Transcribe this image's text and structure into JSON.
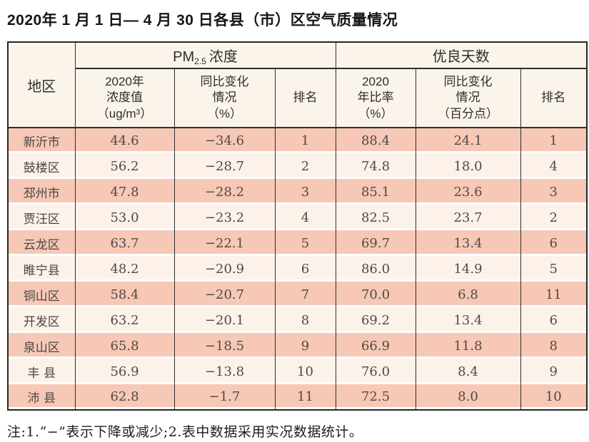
{
  "page": {
    "title": "2020年 1 月 1 日— 4 月 30 日各县（市）区空气质量情况",
    "footnote": "注:1.“−”表示下降或减少;2.表中数据采用实况数据统计。"
  },
  "colors": {
    "row_odd": "#f7c8b6",
    "row_even": "#fdf2ea",
    "header_bg": "#fbf4ea",
    "border": "#2e2e2e"
  },
  "table": {
    "header": {
      "region": "地区",
      "pm25_group": {
        "prefix": "PM",
        "sub": "2.5",
        "suffix": "浓度"
      },
      "good_days_group": "优良天数",
      "sub": {
        "pm_value": "2020年\n浓度值\n（ug/m³）",
        "pm_change": "同比变化\n情况\n（%）",
        "pm_rank": "排名",
        "good_ratio": "2020\n年比率\n（%）",
        "good_change": "同比变化\n情况\n（百分点）",
        "good_rank": "排名"
      }
    },
    "rows": [
      {
        "region": "新沂市",
        "pm_value": "44.6",
        "pm_change": "−34.6",
        "pm_rank": "1",
        "good_ratio": "88.4",
        "good_change": "24.1",
        "good_rank": "1"
      },
      {
        "region": "鼓楼区",
        "pm_value": "56.2",
        "pm_change": "−28.7",
        "pm_rank": "2",
        "good_ratio": "74.8",
        "good_change": "18.0",
        "good_rank": "4"
      },
      {
        "region": "邳州市",
        "pm_value": "47.8",
        "pm_change": "−28.2",
        "pm_rank": "3",
        "good_ratio": "85.1",
        "good_change": "23.6",
        "good_rank": "3"
      },
      {
        "region": "贾汪区",
        "pm_value": "53.0",
        "pm_change": "−23.2",
        "pm_rank": "4",
        "good_ratio": "82.5",
        "good_change": "23.7",
        "good_rank": "2"
      },
      {
        "region": "云龙区",
        "pm_value": "63.7",
        "pm_change": "−22.1",
        "pm_rank": "5",
        "good_ratio": "69.7",
        "good_change": "13.4",
        "good_rank": "6"
      },
      {
        "region": "睢宁县",
        "pm_value": "48.2",
        "pm_change": "−20.9",
        "pm_rank": "6",
        "good_ratio": "86.0",
        "good_change": "14.9",
        "good_rank": "5"
      },
      {
        "region": "铜山区",
        "pm_value": "58.4",
        "pm_change": "−20.7",
        "pm_rank": "7",
        "good_ratio": "70.0",
        "good_change": "6.8",
        "good_rank": "11"
      },
      {
        "region": "开发区",
        "pm_value": "63.2",
        "pm_change": "−20.1",
        "pm_rank": "8",
        "good_ratio": "69.2",
        "good_change": "13.4",
        "good_rank": "6"
      },
      {
        "region": "泉山区",
        "pm_value": "65.8",
        "pm_change": "−18.5",
        "pm_rank": "9",
        "good_ratio": "66.9",
        "good_change": "11.8",
        "good_rank": "8"
      },
      {
        "region": "丰 县",
        "pm_value": "56.9",
        "pm_change": "−13.8",
        "pm_rank": "10",
        "good_ratio": "76.0",
        "good_change": "8.4",
        "good_rank": "9"
      },
      {
        "region": "沛 县",
        "pm_value": "62.8",
        "pm_change": "−1.7",
        "pm_rank": "11",
        "good_ratio": "72.5",
        "good_change": "8.0",
        "good_rank": "10"
      }
    ]
  },
  "chart_data": {
    "type": "table",
    "title": "2020年 1 月 1 日— 4 月 30 日各县（市）区空气质量情况",
    "columns": [
      "地区",
      "PM2.5浓度 2020年浓度值（ug/m³）",
      "PM2.5浓度 同比变化情况（%）",
      "PM2.5浓度 排名",
      "优良天数 2020年比率（%）",
      "优良天数 同比变化情况（百分点）",
      "优良天数 排名"
    ],
    "rows": [
      [
        "新沂市",
        44.6,
        -34.6,
        1,
        88.4,
        24.1,
        1
      ],
      [
        "鼓楼区",
        56.2,
        -28.7,
        2,
        74.8,
        18.0,
        4
      ],
      [
        "邳州市",
        47.8,
        -28.2,
        3,
        85.1,
        23.6,
        3
      ],
      [
        "贾汪区",
        53.0,
        -23.2,
        4,
        82.5,
        23.7,
        2
      ],
      [
        "云龙区",
        63.7,
        -22.1,
        5,
        69.7,
        13.4,
        6
      ],
      [
        "睢宁县",
        48.2,
        -20.9,
        6,
        86.0,
        14.9,
        5
      ],
      [
        "铜山区",
        58.4,
        -20.7,
        7,
        70.0,
        6.8,
        11
      ],
      [
        "开发区",
        63.2,
        -20.1,
        8,
        69.2,
        13.4,
        6
      ],
      [
        "泉山区",
        65.8,
        -18.5,
        9,
        66.9,
        11.8,
        8
      ],
      [
        "丰县",
        56.9,
        -13.8,
        10,
        76.0,
        8.4,
        9
      ],
      [
        "沛县",
        62.8,
        -1.7,
        11,
        72.5,
        8.0,
        10
      ]
    ],
    "note": "注:1.“−”表示下降或减少;2.表中数据采用实况数据统计。"
  }
}
